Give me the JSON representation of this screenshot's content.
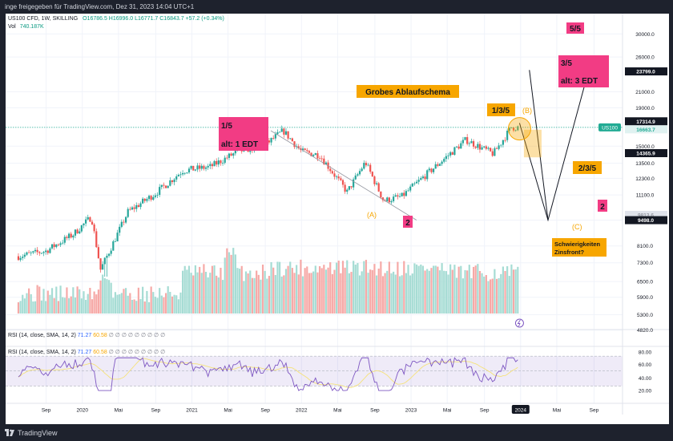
{
  "header": {
    "published": "inge freigegeben für TradingView.com, Dez 31, 2023 14:04 UTC+1"
  },
  "footer": {
    "brand": "TradingView"
  },
  "legend": {
    "symbol": "US100 CFD, 1W, SKILLING",
    "ohlc": "O16786.5  H16996.0  L16771.7  C16843.7  +57.2 (+0.34%)",
    "vol_label": "Vol",
    "vol_value": "740.187K"
  },
  "rsi_legend_1": {
    "label": "RSI (14, close, SMA, 14, 2)",
    "v1": "71.27",
    "v2": "60.58",
    "rest": "∅ ∅ ∅ ∅ ∅ ∅ ∅ ∅ ∅"
  },
  "rsi_legend_2": {
    "label": "RSI (14, close, SMA, 14, 2)",
    "v1": "71.27",
    "v2": "60.58",
    "rest": "∅ ∅ ∅ ∅ ∅ ∅ ∅ ∅ ∅"
  },
  "colors": {
    "up": "#26a69a",
    "down": "#ef5350",
    "pink": "#f23c84",
    "orange": "#f7a600",
    "teal_line": "#22ab94",
    "rsi": "#7e57c2",
    "rsi_ma": "#f5e27a"
  },
  "chart_data": {
    "type": "candlestick",
    "price_axis": {
      "scale": "log",
      "ticks": [
        "30000.0",
        "26000.0",
        "21000.0",
        "19000.0",
        "15000.0",
        "13500.0",
        "12300.0",
        "11100.0",
        "9500.0",
        "8100.0",
        "7300.0",
        "6500.0",
        "5900.0",
        "5300.0",
        "4820.0"
      ],
      "ylim": [
        4600,
        34000
      ]
    },
    "price_badges": {
      "current_label": "US100",
      "current": "17314.9",
      "current2": "16663.7",
      "b1": "23799.0",
      "b2": "14365.9",
      "b3": "9498.0",
      "b4": "9813.6"
    },
    "time_axis": {
      "ticks": [
        "Sep",
        "2020",
        "Mai",
        "Sep",
        "2021",
        "Mai",
        "Sep",
        "2022",
        "Mai",
        "Sep",
        "2023",
        "Mai",
        "Sep",
        "2024",
        "Mai",
        "Sep"
      ],
      "highlight": "2024"
    },
    "weekly_close_anchors": [
      {
        "date": "2019-06",
        "close": 7600
      },
      {
        "date": "2019-09",
        "close": 7850
      },
      {
        "date": "2019-12",
        "close": 8700
      },
      {
        "date": "2020-02",
        "close": 9700
      },
      {
        "date": "2020-03",
        "close": 7000
      },
      {
        "date": "2020-06",
        "close": 10000
      },
      {
        "date": "2020-09",
        "close": 11200
      },
      {
        "date": "2020-12",
        "close": 12900
      },
      {
        "date": "2021-03",
        "close": 13200
      },
      {
        "date": "2021-06",
        "close": 14500
      },
      {
        "date": "2021-09",
        "close": 15100
      },
      {
        "date": "2021-11",
        "close": 16500
      },
      {
        "date": "2022-01",
        "close": 14500
      },
      {
        "date": "2022-03",
        "close": 14200
      },
      {
        "date": "2022-06",
        "close": 11300
      },
      {
        "date": "2022-08",
        "close": 13600
      },
      {
        "date": "2022-10",
        "close": 10700
      },
      {
        "date": "2022-12",
        "close": 11000
      },
      {
        "date": "2023-03",
        "close": 12800
      },
      {
        "date": "2023-07",
        "close": 15600
      },
      {
        "date": "2023-10",
        "close": 14300
      },
      {
        "date": "2023-12",
        "close": 16840
      }
    ],
    "volume": {
      "label": "Vol",
      "last": "740.187K"
    },
    "rsi": {
      "params": "14, close, SMA, 14, 2",
      "value": "71.27",
      "ma": "60.58",
      "axis_ticks": [
        "80.00",
        "60.00",
        "40.00",
        "20.00"
      ]
    },
    "annotations": [
      {
        "text": "5/5"
      },
      {
        "text": "3/5"
      },
      {
        "text": "alt: 3 EDT"
      },
      {
        "text": "Grobes Ablaufschema"
      },
      {
        "text": "1/3/5"
      },
      {
        "text": "(B)"
      },
      {
        "text": "1/5"
      },
      {
        "text": "alt: 1 EDT"
      },
      {
        "text": "2/3/5"
      },
      {
        "text": "(A)"
      },
      {
        "text": "2"
      },
      {
        "text": "(C)"
      },
      {
        "text": "2"
      },
      {
        "text": "Schwierigkeiten"
      },
      {
        "text": "Zinsfront?"
      }
    ]
  }
}
